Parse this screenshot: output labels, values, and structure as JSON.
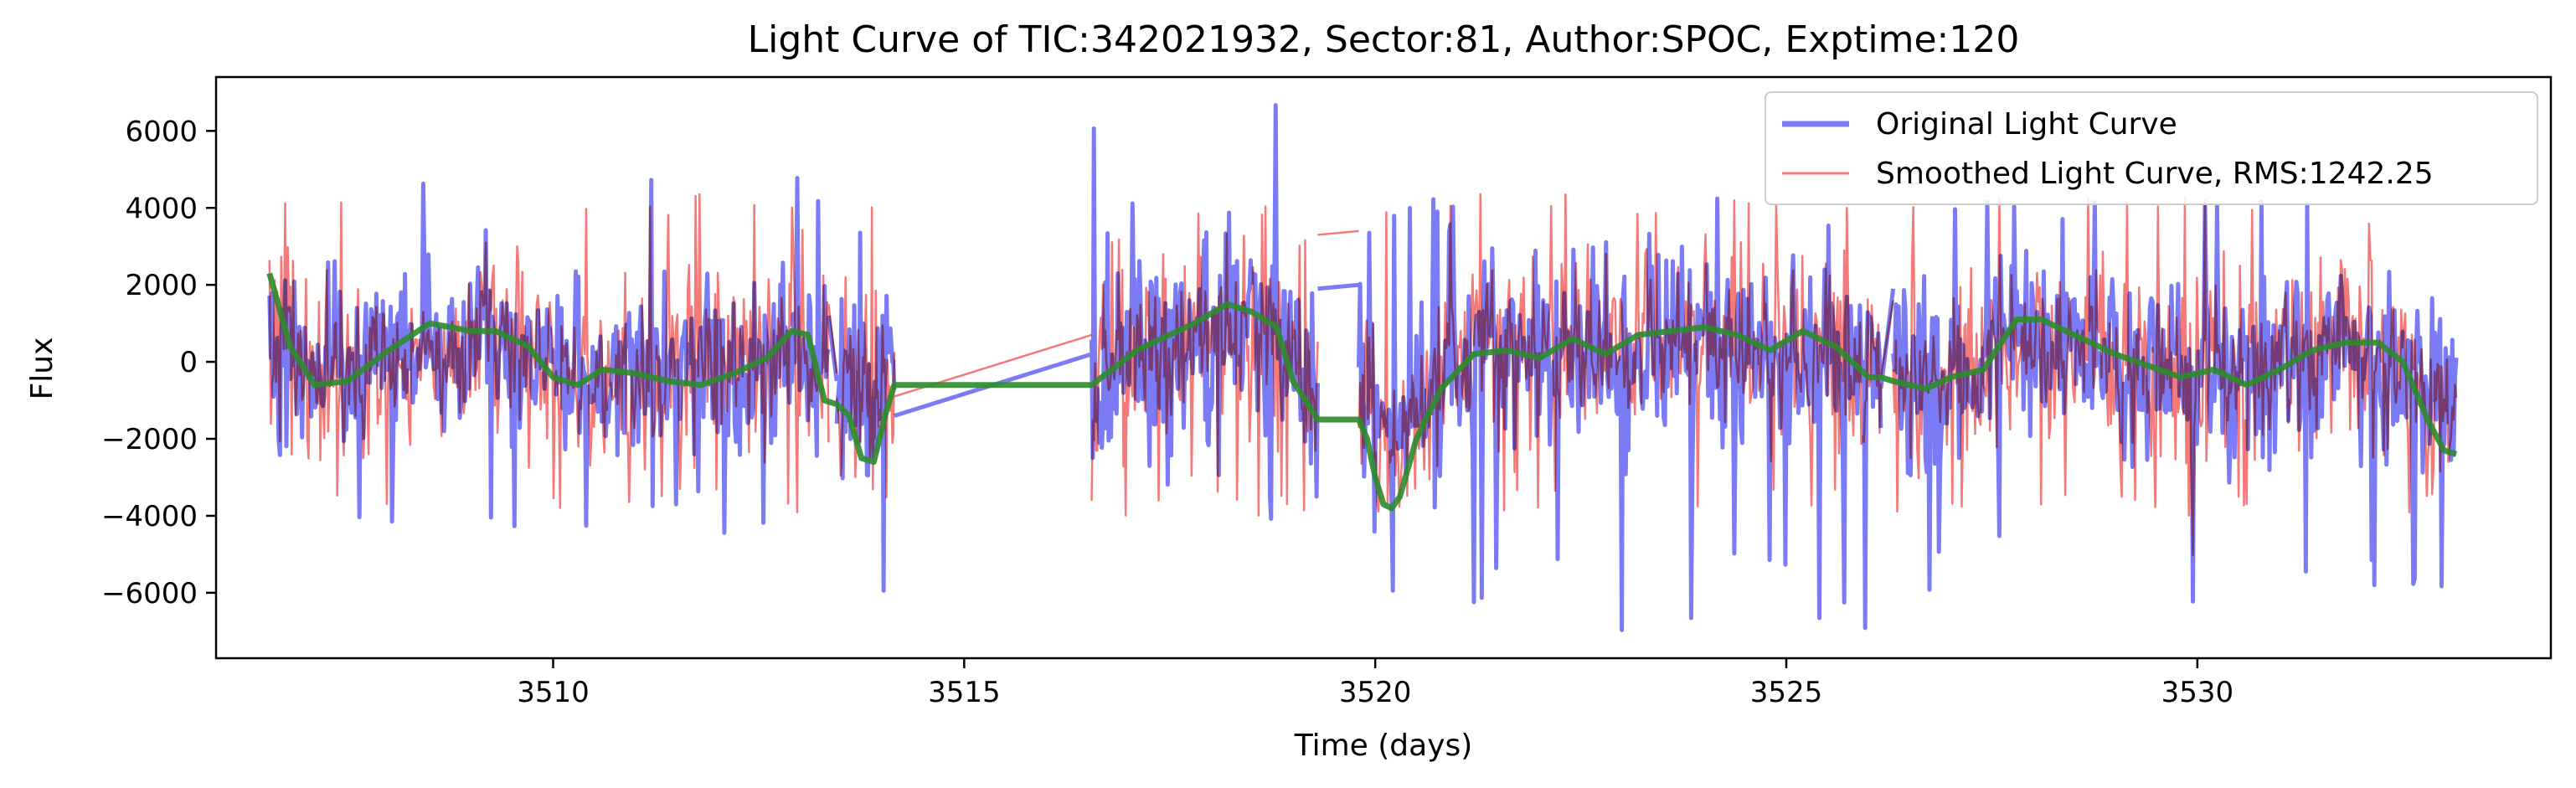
{
  "chart_data": {
    "type": "line",
    "title": "Light Curve of TIC:342021932, Sector:81, Author:SPOC, Exptime:120",
    "xlabel": "Time (days)",
    "ylabel": "Flux",
    "xlim": [
      3505.9,
      3534.3
    ],
    "ylim": [
      -7700,
      7400
    ],
    "xticks": [
      3510,
      3515,
      3520,
      3525,
      3530
    ],
    "yticks": [
      -6000,
      -4000,
      -2000,
      0,
      2000,
      4000,
      6000
    ],
    "grid": false,
    "legend_position": "upper-right",
    "segments": [
      {
        "start": 3506.55,
        "end": 3513.35,
        "n": 430,
        "amp": 1300,
        "spikeDown": 4800,
        "spikeUp": 5100
      },
      {
        "start": 3513.45,
        "end": 3514.15,
        "n": 60,
        "amp": 1300,
        "spikeDown": 6600,
        "spikeUp": 3400
      },
      {
        "start": 3516.55,
        "end": 3519.3,
        "n": 200,
        "amp": 1350,
        "spikeDown": 4200,
        "spikeUp": 6700
      },
      {
        "start": 3519.8,
        "end": 3526.15,
        "n": 400,
        "amp": 1300,
        "spikeDown": 7000,
        "spikeUp": 4300
      },
      {
        "start": 3526.3,
        "end": 3533.15,
        "n": 420,
        "amp": 1300,
        "spikeDown": 6300,
        "spikeUp": 4400
      }
    ],
    "series": [
      {
        "name": "Original Light Curve",
        "color": "#7b7bf5",
        "style": "noisy-flux",
        "gap_connectors": [
          {
            "x": [
              3513.35,
              3513.45
            ],
            "y": [
              1200,
              -500
            ]
          },
          {
            "x": [
              3514.15,
              3516.55
            ],
            "y": [
              -1400,
              200
            ]
          },
          {
            "x": [
              3519.3,
              3519.8
            ],
            "y": [
              1900,
              2000
            ]
          },
          {
            "x": [
              3526.15,
              3526.3
            ],
            "y": [
              -700,
              1900
            ]
          }
        ]
      },
      {
        "name": "Smoothed Light Curve, RMS:1242.25",
        "color": "#f47a7a",
        "style": "noisy-flux",
        "gap_connectors": [
          {
            "x": [
              3513.35,
              3513.45
            ],
            "y": [
              1500,
              -300
            ]
          },
          {
            "x": [
              3514.15,
              3516.55
            ],
            "y": [
              -900,
              700
            ]
          },
          {
            "x": [
              3519.3,
              3519.8
            ],
            "y": [
              3300,
              3400
            ]
          },
          {
            "x": [
              3526.15,
              3526.3
            ],
            "y": [
              -400,
              1600
            ]
          }
        ]
      },
      {
        "name": "",
        "color": "#2e8b2e",
        "style": "trend",
        "x": [
          3506.55,
          3506.8,
          3507.1,
          3507.5,
          3508.0,
          3508.5,
          3509.0,
          3509.3,
          3509.7,
          3510.0,
          3510.3,
          3510.6,
          3511.0,
          3511.4,
          3511.8,
          3512.2,
          3512.6,
          3512.9,
          3513.1,
          3513.3,
          3513.45,
          3513.6,
          3513.75,
          3513.9,
          3514.05,
          3514.15,
          3516.55,
          3516.8,
          3517.1,
          3517.4,
          3517.8,
          3518.2,
          3518.5,
          3518.8,
          3519.0,
          3519.3,
          3519.8,
          3519.9,
          3520.0,
          3520.1,
          3520.2,
          3520.3,
          3520.5,
          3520.8,
          3521.2,
          3521.6,
          3522.0,
          3522.4,
          3522.8,
          3523.2,
          3523.6,
          3524.0,
          3524.4,
          3524.8,
          3525.2,
          3525.6,
          3526.0,
          3526.15,
          3526.3,
          3526.7,
          3527.0,
          3527.4,
          3527.8,
          3528.1,
          3528.4,
          3528.7,
          3529.0,
          3529.4,
          3529.8,
          3530.2,
          3530.6,
          3531.0,
          3531.4,
          3531.8,
          3532.2,
          3532.5,
          3532.8,
          3533.0,
          3533.15
        ],
        "y": [
          2300,
          400,
          -600,
          -500,
          300,
          1000,
          800,
          800,
          400,
          -400,
          -600,
          -200,
          -300,
          -500,
          -600,
          -300,
          100,
          800,
          700,
          -1000,
          -1100,
          -1400,
          -2500,
          -2600,
          -1300,
          -600,
          -600,
          -200,
          300,
          600,
          1000,
          1500,
          1300,
          900,
          -500,
          -1500,
          -1500,
          -2000,
          -3000,
          -3700,
          -3800,
          -3500,
          -2000,
          -700,
          200,
          300,
          100,
          600,
          200,
          700,
          800,
          900,
          700,
          300,
          800,
          400,
          -400,
          -400,
          -500,
          -700,
          -400,
          -200,
          1100,
          1100,
          800,
          500,
          200,
          -100,
          -400,
          -200,
          -600,
          -200,
          300,
          500,
          500,
          0,
          -1500,
          -2300,
          -2400
        ]
      }
    ]
  }
}
